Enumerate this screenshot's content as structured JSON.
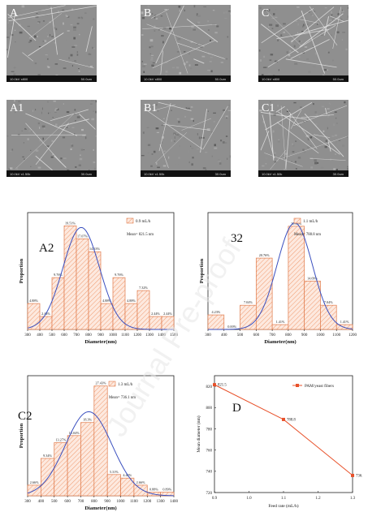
{
  "sem_panels": [
    {
      "label": "A",
      "info": "10.0kV x800",
      "scale": "50.0um"
    },
    {
      "label": "B",
      "info": "10.0kV x800",
      "scale": "50.0um"
    },
    {
      "label": "C",
      "info": "10.0kV x800",
      "scale": "50.0um"
    },
    {
      "label": "A1",
      "info": "10.0kV x1.50k",
      "scale": "30.0um"
    },
    {
      "label": "B1",
      "info": "10.0kV x1.50k",
      "scale": "30.0um"
    },
    {
      "label": "C1",
      "info": "10.0kV x1.50k",
      "scale": "30.0um"
    }
  ],
  "watermark": "Journal Pre-proof",
  "chart_data": [
    {
      "id": "A2",
      "type": "bar",
      "panel_label": "A2",
      "legend": "0.9 mL/h",
      "mean": "Mean= 821.5 nm",
      "xlabel": "Diameter(nm)",
      "ylabel": "Proportion",
      "xlim": [
        300,
        1500
      ],
      "ticks": [
        "300",
        "400",
        "500",
        "600",
        "700",
        "800",
        "900",
        "1000",
        "1100",
        "1200",
        "1300",
        "1400",
        "1500"
      ],
      "bins": [
        {
          "x0": 300,
          "x1": 400,
          "value": 4.88,
          "label": "4.88%"
        },
        {
          "x0": 400,
          "x1": 500,
          "value": 2.44,
          "label": "2.44%"
        },
        {
          "x0": 500,
          "x1": 600,
          "value": 9.76,
          "label": "9.76%"
        },
        {
          "x0": 600,
          "x1": 700,
          "value": 19.51,
          "label": "19.51%"
        },
        {
          "x0": 700,
          "x1": 800,
          "value": 17.07,
          "label": "17.07%"
        },
        {
          "x0": 800,
          "x1": 900,
          "value": 14.63,
          "label": "14.63%"
        },
        {
          "x0": 900,
          "x1": 1000,
          "value": 4.88,
          "label": "4.88%"
        },
        {
          "x0": 1000,
          "x1": 1100,
          "value": 9.76,
          "label": "9.76%"
        },
        {
          "x0": 1100,
          "x1": 1200,
          "value": 4.88,
          "label": "4.88%"
        },
        {
          "x0": 1200,
          "x1": 1300,
          "value": 7.32,
          "label": "7.32%"
        },
        {
          "x0": 1300,
          "x1": 1400,
          "value": 2.44,
          "label": "2.44%"
        },
        {
          "x0": 1400,
          "x1": 1500,
          "value": 2.44,
          "label": "2.44%"
        }
      ],
      "fit": {
        "mu": 740,
        "sigma": 150,
        "peak": 19.2
      },
      "ymax": 22
    },
    {
      "id": "B2",
      "type": "bar",
      "panel_label": "32",
      "legend": "1.1 mL/h",
      "mean": "Mean= 788.8 nm",
      "xlabel": "Diameter(nm)",
      "ylabel": "Proportion",
      "xlim": [
        300,
        1200
      ],
      "ticks": [
        "300",
        "400",
        "500",
        "600",
        "700",
        "800",
        "900",
        "1000",
        "1100",
        "1200"
      ],
      "bins": [
        {
          "x0": 300,
          "x1": 400,
          "value": 4.23,
          "label": "4.23%"
        },
        {
          "x0": 400,
          "x1": 500,
          "value": 0.0,
          "label": "0.00%"
        },
        {
          "x0": 500,
          "x1": 600,
          "value": 7.04,
          "label": "7.04%"
        },
        {
          "x0": 600,
          "x1": 700,
          "value": 20.76,
          "label": "20.76%"
        },
        {
          "x0": 700,
          "x1": 800,
          "value": 1.41,
          "label": "1.41%"
        },
        {
          "x0": 800,
          "x1": 900,
          "value": 30.03,
          "label": "30.03%"
        },
        {
          "x0": 900,
          "x1": 1000,
          "value": 14.09,
          "label": "14.09%"
        },
        {
          "x0": 1000,
          "x1": 1100,
          "value": 7.04,
          "label": "7.04%"
        },
        {
          "x0": 1100,
          "x1": 1200,
          "value": 1.41,
          "label": "1.41%"
        }
      ],
      "fit": {
        "mu": 840,
        "sigma": 110,
        "peak": 31
      },
      "ymax": 34
    },
    {
      "id": "C2",
      "type": "bar",
      "panel_label": "C2",
      "legend": "1.3 mL/h",
      "mean": "Mean= 736.1 nm",
      "xlabel": "Diameter(nm)",
      "ylabel": "Proportion",
      "xlim": [
        300,
        1400
      ],
      "ticks": [
        "300",
        "400",
        "500",
        "600",
        "700",
        "800",
        "900",
        "1000",
        "1100",
        "1200",
        "1300",
        "1400"
      ],
      "bins": [
        {
          "x0": 300,
          "x1": 400,
          "value": 2.66,
          "label": "2.66%"
        },
        {
          "x0": 400,
          "x1": 500,
          "value": 9.34,
          "label": "9.34%"
        },
        {
          "x0": 500,
          "x1": 600,
          "value": 13.27,
          "label": "13.27%"
        },
        {
          "x0": 600,
          "x1": 700,
          "value": 15.04,
          "label": "15.04%"
        },
        {
          "x0": 700,
          "x1": 800,
          "value": 18.3,
          "label": "18.3%"
        },
        {
          "x0": 800,
          "x1": 900,
          "value": 27.43,
          "label": "27.43%"
        },
        {
          "x0": 900,
          "x1": 1000,
          "value": 5.31,
          "label": "5.31%"
        },
        {
          "x0": 1000,
          "x1": 1100,
          "value": 4.42,
          "label": "4.42%"
        },
        {
          "x0": 1100,
          "x1": 1200,
          "value": 2.66,
          "label": "2.66%"
        },
        {
          "x0": 1200,
          "x1": 1300,
          "value": 0.88,
          "label": "0.88%"
        },
        {
          "x0": 1300,
          "x1": 1400,
          "value": 0.89,
          "label": "0.89%"
        }
      ],
      "fit": {
        "mu": 760,
        "sigma": 175,
        "peak": 21
      },
      "ymax": 30
    },
    {
      "id": "D",
      "type": "line",
      "panel_label": "D",
      "legend": "PAM/yeast fibers",
      "xlabel": "Feed rate (mL/h)",
      "ylabel": "Mean diameter (nm)",
      "xlim": [
        0.9,
        1.3
      ],
      "ylim": [
        720,
        830
      ],
      "xticks": [
        "0.9",
        "1.0",
        "1.1",
        "1.2",
        "1.3"
      ],
      "yticks": [
        "720",
        "740",
        "760",
        "780",
        "800",
        "820"
      ],
      "x": [
        0.9,
        1.1,
        1.3
      ],
      "y": [
        821.5,
        788.8,
        736.1
      ],
      "point_labels": [
        "821.5",
        "788.8",
        "736.1"
      ],
      "color": "#e8512a"
    }
  ]
}
